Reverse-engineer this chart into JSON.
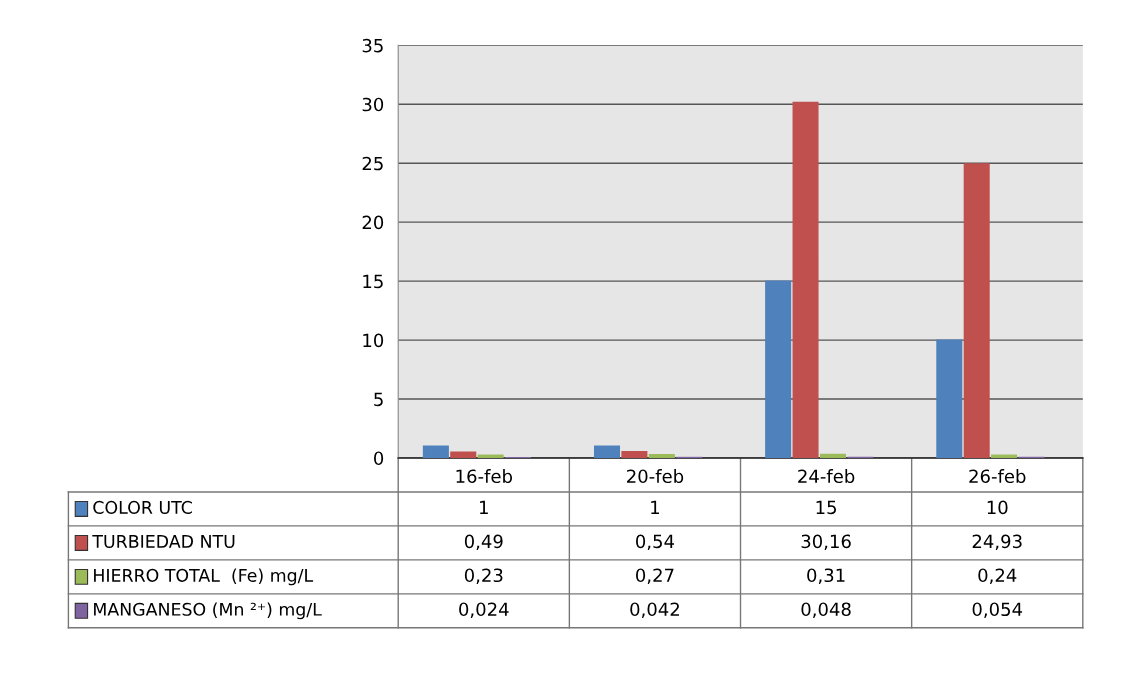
{
  "chart_data": {
    "type": "bar",
    "categories": [
      "16-feb",
      "20-feb",
      "24-feb",
      "26-feb"
    ],
    "series": [
      {
        "name": "COLOR UTC",
        "color": "#4f81bd",
        "values": [
          1,
          1,
          15,
          10
        ],
        "value_labels": [
          "1",
          "1",
          "15",
          "10"
        ]
      },
      {
        "name": "TURBIEDAD NTU",
        "color": "#c0504d",
        "values": [
          0.49,
          0.54,
          30.16,
          24.93
        ],
        "value_labels": [
          "0,49",
          "0,54",
          "30,16",
          "24,93"
        ]
      },
      {
        "name": "HIERRO TOTAL  (Fe) mg/L",
        "color": "#9bbb59",
        "values": [
          0.23,
          0.27,
          0.31,
          0.24
        ],
        "value_labels": [
          "0,23",
          "0,27",
          "0,31",
          "0,24"
        ]
      },
      {
        "name": "MANGANESO (Mn ²⁺) mg/L",
        "color": "#8064a2",
        "values": [
          0.024,
          0.042,
          0.048,
          0.054
        ],
        "value_labels": [
          "0,024",
          "0,042",
          "0,048",
          "0,054"
        ]
      }
    ],
    "ylim": [
      0,
      35
    ],
    "yticks": [
      0,
      5,
      10,
      15,
      20,
      25,
      30,
      35
    ],
    "grid": "y",
    "legend": "bottom left"
  }
}
